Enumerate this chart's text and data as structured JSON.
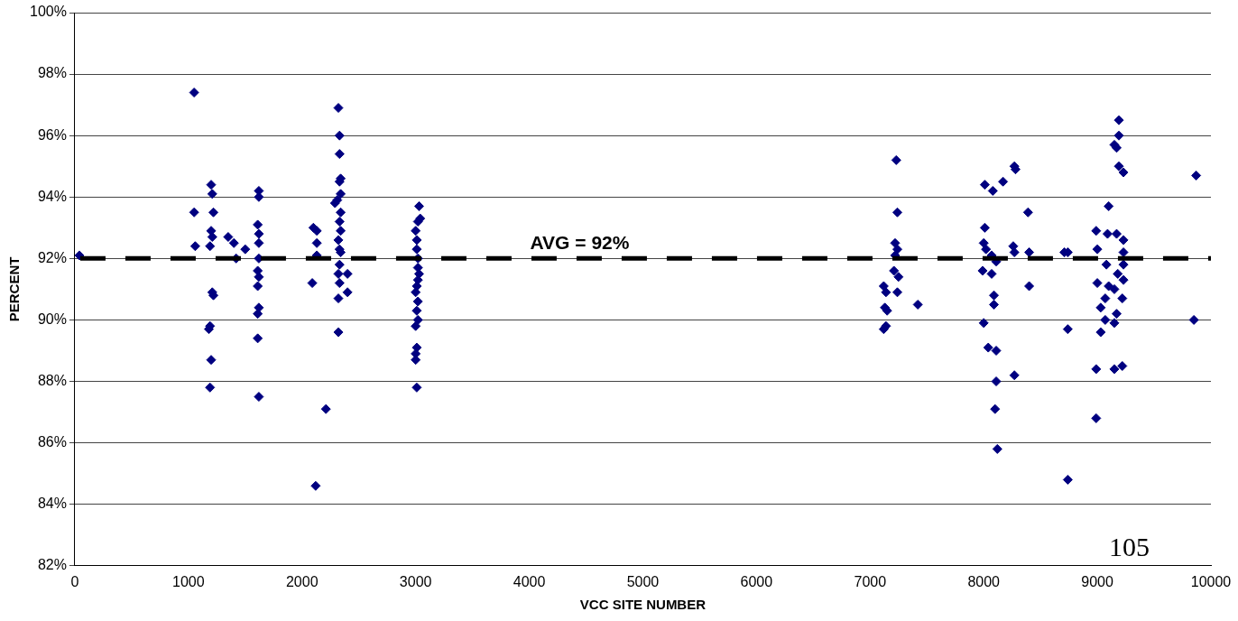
{
  "chart_data": {
    "type": "scatter",
    "xlabel": "VCC SITE NUMBER",
    "ylabel": "PERCENT",
    "xlim": [
      0,
      10000
    ],
    "xticks": [
      0,
      1000,
      2000,
      3000,
      4000,
      5000,
      6000,
      7000,
      8000,
      9000,
      10000
    ],
    "ylim": [
      82,
      100
    ],
    "yticks": [
      {
        "value": 82,
        "label": "82%"
      },
      {
        "value": 84,
        "label": "84%"
      },
      {
        "value": 86,
        "label": "86%"
      },
      {
        "value": 88,
        "label": "88%"
      },
      {
        "value": 90,
        "label": "90%"
      },
      {
        "value": 92,
        "label": "92%"
      },
      {
        "value": 94,
        "label": "94%"
      },
      {
        "value": 96,
        "label": "96%"
      },
      {
        "value": 98,
        "label": "98%"
      },
      {
        "value": 100,
        "label": "100%"
      }
    ],
    "grid": "y",
    "marker": "diamond",
    "legend": false,
    "ref_lines": [
      {
        "axis": "y",
        "value": 92,
        "label": "AVG = 92%",
        "color": "#000000",
        "line_style": "dashed"
      }
    ],
    "annotations": [
      "105"
    ],
    "series": [
      {
        "color": "#000080",
        "x": [
          40,
          1050,
          1050,
          1060,
          1200,
          1210,
          1220,
          1200,
          1210,
          1190,
          1210,
          1220,
          1190,
          1180,
          1200,
          1190,
          1350,
          1400,
          1500,
          1420,
          1620,
          1620,
          1610,
          1620,
          1620,
          1620,
          1610,
          1620,
          1610,
          1620,
          1610,
          1610,
          1620,
          2100,
          2130,
          2130,
          2130,
          2090,
          2210,
          2120,
          2320,
          2330,
          2330,
          2340,
          2330,
          2340,
          2310,
          2290,
          2340,
          2330,
          2340,
          2320,
          2330,
          2340,
          2330,
          2320,
          2330,
          2320,
          2320,
          2400,
          2400,
          3030,
          3040,
          3020,
          3000,
          3010,
          3010,
          3020,
          3020,
          3030,
          3020,
          3010,
          3000,
          3020,
          3010,
          3020,
          3000,
          3010,
          3000,
          3000,
          3010,
          7120,
          7140,
          7130,
          7150,
          7140,
          7120,
          7230,
          7240,
          7220,
          7240,
          7220,
          7210,
          7250,
          7240,
          7420,
          8010,
          8080,
          8170,
          8280,
          8270,
          8010,
          8000,
          8020,
          8070,
          8110,
          7990,
          8070,
          8090,
          8090,
          8000,
          8040,
          8110,
          8110,
          8100,
          8120,
          8260,
          8270,
          8270,
          8390,
          8400,
          8400,
          8710,
          8740,
          8740,
          8740,
          9190,
          9190,
          9150,
          9170,
          9190,
          9230,
          9870,
          9100,
          8990,
          9090,
          9170,
          9230,
          9000,
          9230,
          9080,
          9230,
          9180,
          9230,
          9000,
          9100,
          9150,
          9070,
          9220,
          9030,
          9170,
          9070,
          9150,
          9030,
          9850,
          8990,
          9150,
          9220,
          8990
        ],
        "values": [
          92.1,
          97.4,
          93.5,
          92.4,
          94.4,
          94.1,
          93.5,
          92.9,
          92.7,
          92.4,
          90.9,
          90.8,
          89.8,
          89.7,
          88.7,
          87.8,
          92.7,
          92.5,
          92.3,
          92.0,
          94.2,
          94.0,
          93.1,
          92.8,
          92.5,
          92.0,
          91.6,
          91.4,
          91.1,
          90.4,
          90.2,
          89.4,
          87.5,
          93.0,
          92.9,
          92.5,
          92.1,
          91.2,
          87.1,
          84.6,
          96.9,
          96.0,
          95.4,
          94.6,
          94.5,
          94.1,
          93.9,
          93.8,
          93.5,
          93.2,
          92.9,
          92.6,
          92.3,
          92.2,
          91.8,
          91.5,
          91.2,
          90.7,
          89.6,
          91.5,
          90.9,
          93.7,
          93.3,
          93.2,
          92.9,
          92.6,
          92.3,
          92.0,
          91.7,
          91.5,
          91.3,
          91.1,
          90.9,
          90.6,
          90.3,
          90.0,
          89.8,
          89.1,
          88.9,
          88.7,
          87.8,
          91.1,
          90.9,
          90.4,
          90.3,
          89.8,
          89.7,
          95.2,
          93.5,
          92.5,
          92.3,
          92.1,
          91.6,
          91.4,
          90.9,
          90.5,
          94.4,
          94.2,
          94.5,
          94.9,
          95.0,
          93.0,
          92.5,
          92.3,
          92.1,
          91.9,
          91.6,
          91.5,
          90.8,
          90.5,
          89.9,
          89.1,
          89.0,
          88.0,
          87.1,
          85.8,
          92.4,
          92.2,
          88.2,
          93.5,
          92.2,
          91.1,
          92.2,
          92.2,
          89.7,
          84.8,
          96.5,
          96.0,
          95.7,
          95.6,
          95.0,
          94.8,
          94.7,
          93.7,
          92.9,
          92.8,
          92.8,
          92.6,
          92.3,
          92.2,
          91.8,
          91.8,
          91.5,
          91.3,
          91.2,
          91.1,
          91.0,
          90.7,
          90.7,
          90.4,
          90.2,
          90.0,
          89.9,
          89.6,
          90.0,
          88.4,
          88.4,
          88.5,
          86.8
        ]
      }
    ]
  }
}
